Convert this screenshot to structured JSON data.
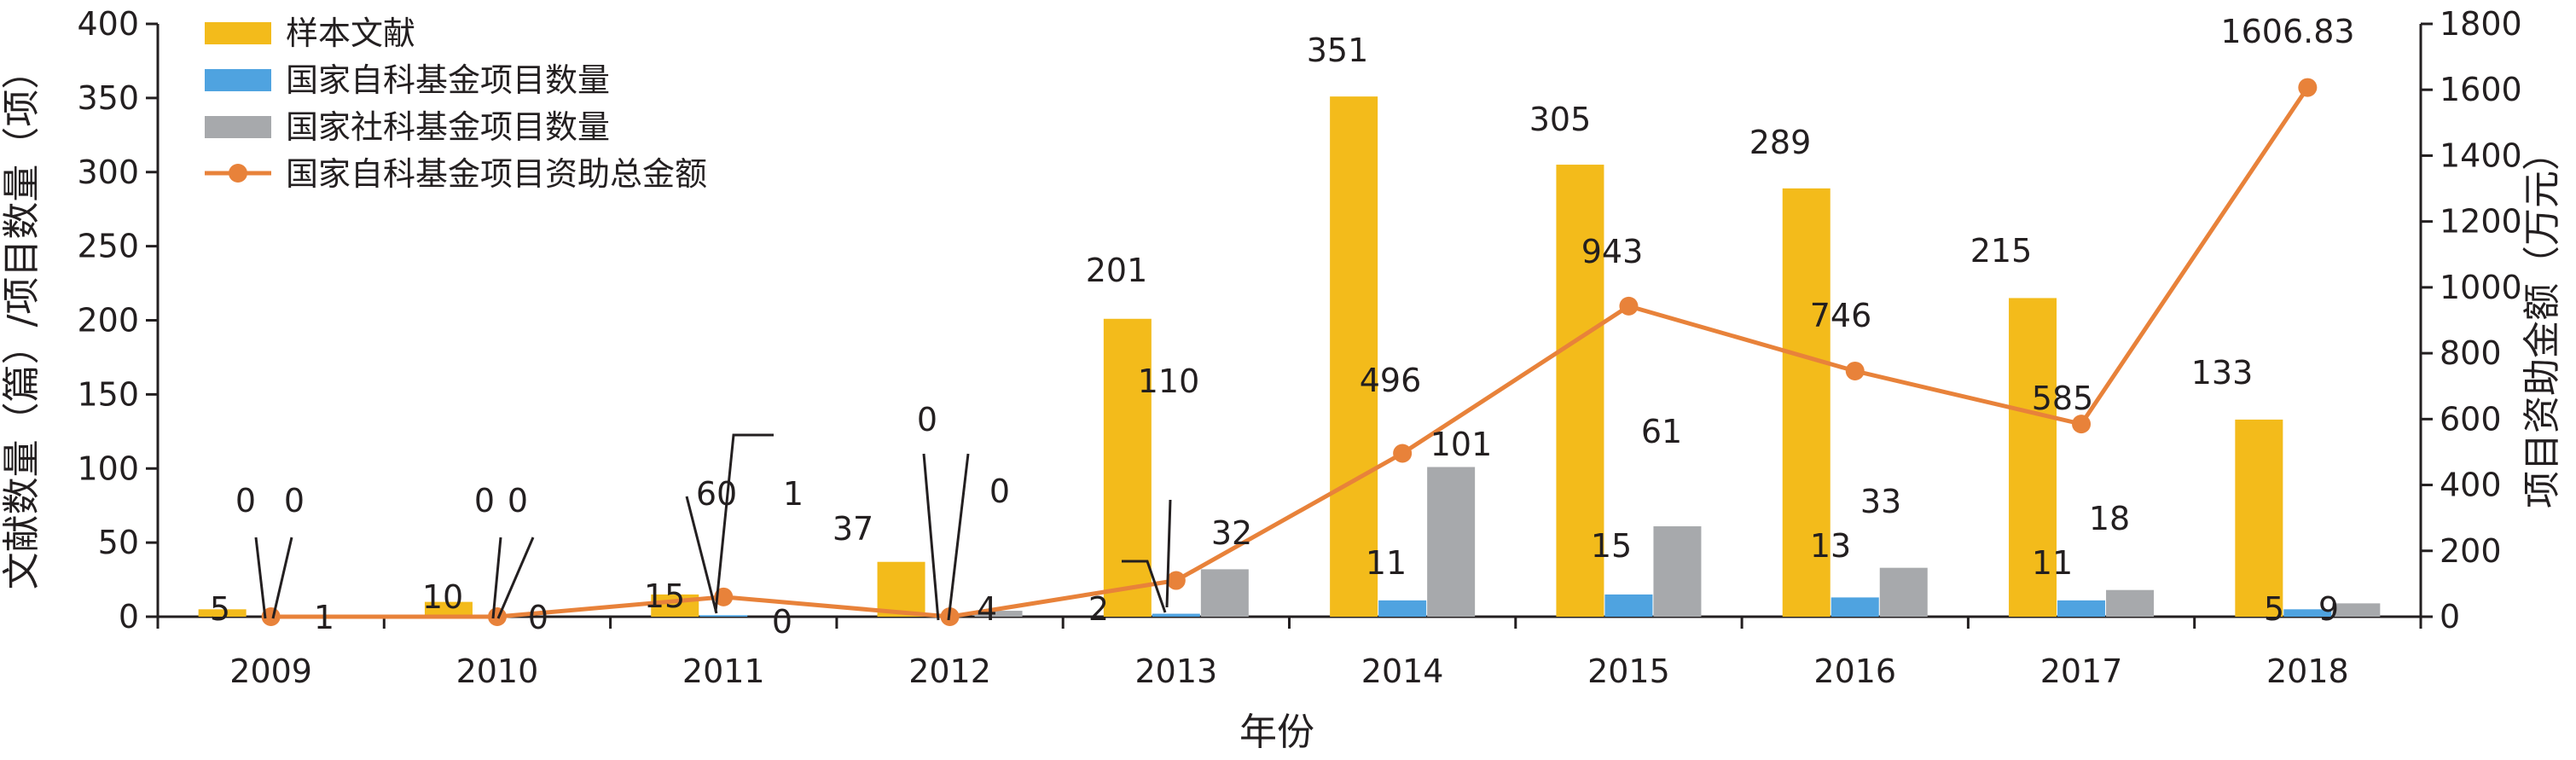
{
  "chart_data": {
    "type": "bar",
    "categories": [
      "2009",
      "2010",
      "2011",
      "2012",
      "2013",
      "2014",
      "2015",
      "2016",
      "2017",
      "2018"
    ],
    "series": [
      {
        "name": "样本文献",
        "type": "bar",
        "axis": "left",
        "color": "#f3bb1b",
        "values": [
          5,
          10,
          15,
          37,
          201,
          351,
          305,
          289,
          215,
          133
        ]
      },
      {
        "name": "国家自科基金项目数量",
        "type": "bar",
        "axis": "left",
        "color": "#4fa3e0",
        "values": [
          0,
          0,
          1,
          0,
          2,
          11,
          15,
          13,
          11,
          5
        ]
      },
      {
        "name": "国家社科基金项目数量",
        "type": "bar",
        "axis": "left",
        "color": "#a7a9ac",
        "values": [
          1,
          0,
          0,
          4,
          32,
          101,
          61,
          33,
          18,
          9
        ]
      },
      {
        "name": "国家自科基金项目资助总金额",
        "type": "line",
        "axis": "right",
        "color": "#e8823a",
        "values": [
          0,
          0,
          60,
          0,
          110,
          496,
          943,
          746,
          585,
          1606.83
        ]
      }
    ],
    "data_labels": {
      "s0": [
        "5",
        "10",
        "15",
        "37",
        "201",
        "351",
        "305",
        "289",
        "215",
        "133"
      ],
      "s1": [
        "0",
        "0",
        "1",
        "0",
        "2",
        "11",
        "15",
        "13",
        "11",
        "5"
      ],
      "s2": [
        "1",
        "0",
        "0",
        "4",
        "32",
        "101",
        "61",
        "33",
        "18",
        "9"
      ],
      "line": [
        "0",
        "0",
        "60",
        "0",
        "110",
        "496",
        "943",
        "746",
        "585",
        "1606.83"
      ]
    },
    "xlabel": "年份",
    "ylabel_left": "文献数量（篇）/项目数量（项）",
    "ylabel_right": "项目资助金额（万元）",
    "ylim_left": [
      0,
      400
    ],
    "yticks_left": [
      "0",
      "50",
      "100",
      "150",
      "200",
      "250",
      "300",
      "350",
      "400"
    ],
    "ylim_right": [
      0,
      1800
    ],
    "yticks_right": [
      "0",
      "200",
      "400",
      "600",
      "800",
      "1000",
      "1200",
      "1400",
      "1600",
      "1800"
    ],
    "grid": false,
    "legend": "top-left"
  }
}
